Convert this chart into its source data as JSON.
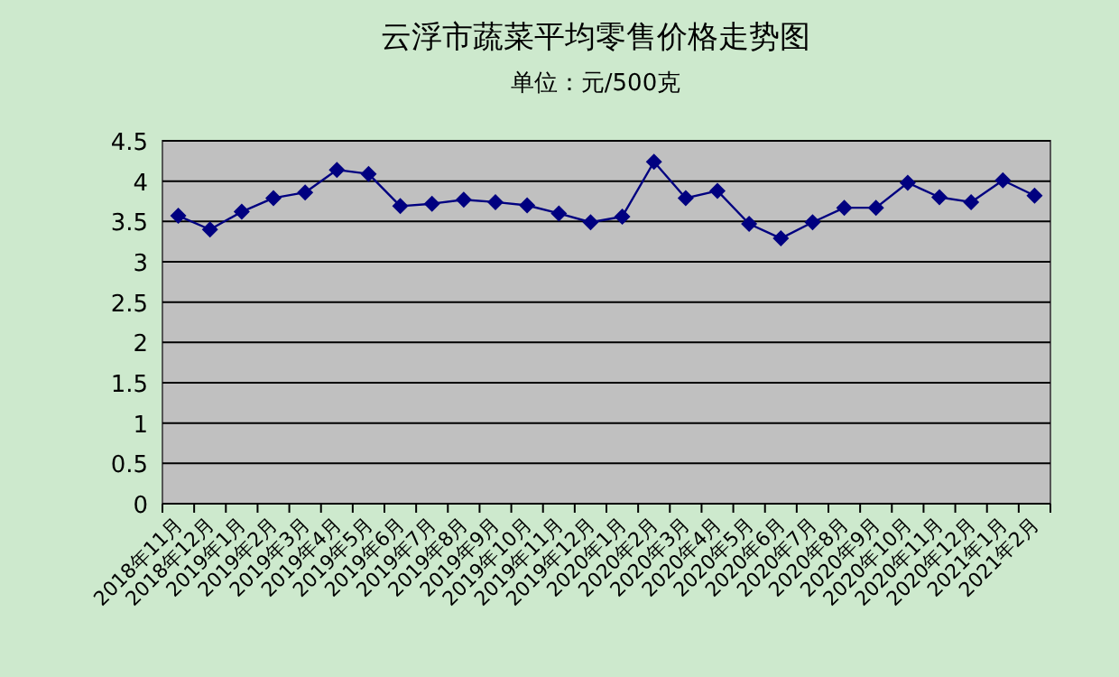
{
  "chart_data": {
    "type": "line",
    "title": "云浮市蔬菜平均零售价格走势图",
    "subtitle": "单位：元/500克",
    "categories": [
      "2018年11月",
      "2018年12月",
      "2019年1月",
      "2019年2月",
      "2019年3月",
      "2019年4月",
      "2019年5月",
      "2019年6月",
      "2019年7月",
      "2019年8月",
      "2019年9月",
      "2019年10月",
      "2019年11月",
      "2019年12月",
      "2020年1月",
      "2020年2月",
      "2020年3月",
      "2020年4月",
      "2020年5月",
      "2020年6月",
      "2020年7月",
      "2020年8月",
      "2020年9月",
      "2020年10月",
      "2020年11月",
      "2020年12月",
      "2021年1月",
      "2021年2月"
    ],
    "series": [
      {
        "color": "#000080",
        "values": [
          3.57,
          3.4,
          3.62,
          3.79,
          3.86,
          4.14,
          4.09,
          3.69,
          3.72,
          3.77,
          3.74,
          3.7,
          3.6,
          3.49,
          3.56,
          4.24,
          3.79,
          3.88,
          3.47,
          3.29,
          3.49,
          3.67,
          3.67,
          3.98,
          3.8,
          3.74,
          4.01,
          3.82
        ]
      }
    ],
    "ylim": [
      0,
      4.5
    ],
    "yticks": [
      0,
      0.5,
      1,
      1.5,
      2,
      2.5,
      3,
      3.5,
      4,
      4.5
    ],
    "grid": "y",
    "marker": "diamond",
    "line_style": "solid"
  }
}
